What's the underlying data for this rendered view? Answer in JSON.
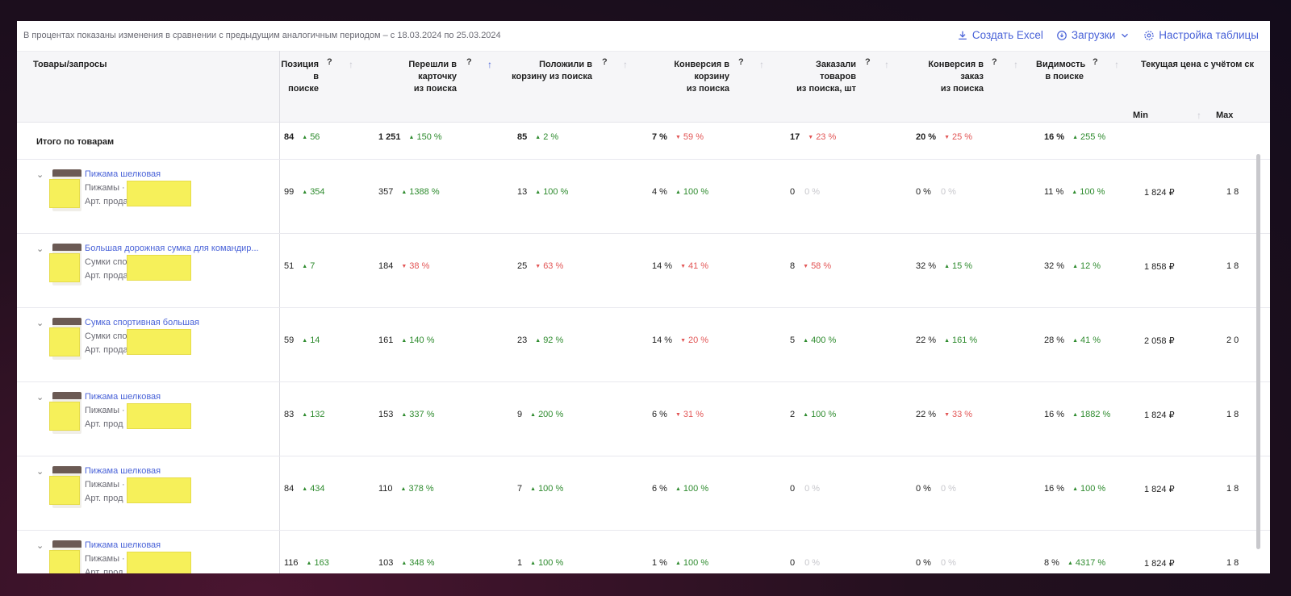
{
  "notice": "В процентах показаны изменения в сравнении с предыдущим аналогичным периодом – с 18.03.2024 по 25.03.2024",
  "actions": {
    "excel": "Создать Excel",
    "downloads": "Загрузки",
    "settings": "Настройка таблицы"
  },
  "header": {
    "product_col": "Товары/запросы",
    "cols": [
      {
        "l1": "Позиция в",
        "l2": "поиске"
      },
      {
        "l1": "Перешли в карточку",
        "l2": "из поиска"
      },
      {
        "l1": "Положили в",
        "l2": "корзину из поиска"
      },
      {
        "l1": "Конверсия в корзину",
        "l2": "из поиска"
      },
      {
        "l1": "Заказали товаров",
        "l2": "из поиска, шт"
      },
      {
        "l1": "Конверсия в заказ",
        "l2": "из поиска"
      },
      {
        "l1": "Видимость",
        "l2": "в поиске"
      },
      {
        "l1": "Текущая цена с учётом ск",
        "l2": ""
      }
    ],
    "question": "?",
    "sub_min": "Min",
    "sub_max": "Max"
  },
  "total": {
    "label": "Итого по товарам",
    "cells": [
      {
        "v": "84",
        "c": "56",
        "d": "up"
      },
      {
        "v": "1 251",
        "c": "150 %",
        "d": "up"
      },
      {
        "v": "85",
        "c": "2 %",
        "d": "up"
      },
      {
        "v": "7 %",
        "c": "59 %",
        "d": "down"
      },
      {
        "v": "17",
        "c": "23 %",
        "d": "down"
      },
      {
        "v": "20 %",
        "c": "25 %",
        "d": "down"
      },
      {
        "v": "16 %",
        "c": "255 %",
        "d": "up"
      }
    ]
  },
  "rows": [
    {
      "name": "Пижама шелковая",
      "cat": "Пижамы ·",
      "art": "Арт. продавца р",
      "cells": [
        {
          "v": "99",
          "c": "354",
          "d": "up"
        },
        {
          "v": "357",
          "c": "1388 %",
          "d": "up"
        },
        {
          "v": "13",
          "c": "100 %",
          "d": "up"
        },
        {
          "v": "4 %",
          "c": "100 %",
          "d": "up"
        },
        {
          "v": "0",
          "c": "0 %",
          "d": "zero"
        },
        {
          "v": "0 %",
          "c": "0 %",
          "d": "zero"
        },
        {
          "v": "11 %",
          "c": "100 %",
          "d": "up"
        }
      ],
      "price": "1 824 ₽",
      "price_max": "1 8"
    },
    {
      "name": "Большая дорожная сумка для командир...",
      "cat": "Сумки спортивн",
      "art": "Арт. продавца SS",
      "cells": [
        {
          "v": "51",
          "c": "7",
          "d": "up"
        },
        {
          "v": "184",
          "c": "38 %",
          "d": "down"
        },
        {
          "v": "25",
          "c": "63 %",
          "d": "down"
        },
        {
          "v": "14 %",
          "c": "41 %",
          "d": "down"
        },
        {
          "v": "8",
          "c": "58 %",
          "d": "down"
        },
        {
          "v": "32 %",
          "c": "15 %",
          "d": "up"
        },
        {
          "v": "32 %",
          "c": "12 %",
          "d": "up"
        }
      ],
      "price": "1 858 ₽",
      "price_max": "1 8"
    },
    {
      "name": "Сумка спортивная большая",
      "cat": "Сумки спортив e",
      "art": "Арт. продавца S",
      "cells": [
        {
          "v": "59",
          "c": "14",
          "d": "up"
        },
        {
          "v": "161",
          "c": "140 %",
          "d": "up"
        },
        {
          "v": "23",
          "c": "92 %",
          "d": "up"
        },
        {
          "v": "14 %",
          "c": "20 %",
          "d": "down"
        },
        {
          "v": "5",
          "c": "400 %",
          "d": "up"
        },
        {
          "v": "22 %",
          "c": "161 %",
          "d": "up"
        },
        {
          "v": "28 %",
          "c": "41 %",
          "d": "up"
        }
      ],
      "price": "2 058 ₽",
      "price_max": "2 0"
    },
    {
      "name": "Пижама шелковая",
      "cat": "Пижамы ·",
      "art": "Арт. прод",
      "cells": [
        {
          "v": "83",
          "c": "132",
          "d": "up"
        },
        {
          "v": "153",
          "c": "337 %",
          "d": "up"
        },
        {
          "v": "9",
          "c": "200 %",
          "d": "up"
        },
        {
          "v": "6 %",
          "c": "31 %",
          "d": "down"
        },
        {
          "v": "2",
          "c": "100 %",
          "d": "up"
        },
        {
          "v": "22 %",
          "c": "33 %",
          "d": "down"
        },
        {
          "v": "16 %",
          "c": "1882 %",
          "d": "up"
        }
      ],
      "price": "1 824 ₽",
      "price_max": "1 8"
    },
    {
      "name": "Пижама шелковая",
      "cat": "Пижамы ·",
      "art": "Арт. прод",
      "cells": [
        {
          "v": "84",
          "c": "434",
          "d": "up"
        },
        {
          "v": "110",
          "c": "378 %",
          "d": "up"
        },
        {
          "v": "7",
          "c": "100 %",
          "d": "up"
        },
        {
          "v": "6 %",
          "c": "100 %",
          "d": "up"
        },
        {
          "v": "0",
          "c": "0 %",
          "d": "zero"
        },
        {
          "v": "0 %",
          "c": "0 %",
          "d": "zero"
        },
        {
          "v": "16 %",
          "c": "100 %",
          "d": "up"
        }
      ],
      "price": "1 824 ₽",
      "price_max": "1 8"
    },
    {
      "name": "Пижама шелковая",
      "cat": "Пижамы ·",
      "art": "Арт. прод",
      "cells": [
        {
          "v": "116",
          "c": "163",
          "d": "up"
        },
        {
          "v": "103",
          "c": "348 %",
          "d": "up"
        },
        {
          "v": "1",
          "c": "100 %",
          "d": "up"
        },
        {
          "v": "1 %",
          "c": "100 %",
          "d": "up"
        },
        {
          "v": "0",
          "c": "0 %",
          "d": "zero"
        },
        {
          "v": "0 %",
          "c": "0 %",
          "d": "zero"
        },
        {
          "v": "8 %",
          "c": "4317 %",
          "d": "up"
        }
      ],
      "price": "1 824 ₽",
      "price_max": "1 8"
    }
  ],
  "colors": {
    "accent": "#4a63d8",
    "up": "#2e8b2e",
    "down": "#e25555",
    "mask": "#f6f05a"
  }
}
